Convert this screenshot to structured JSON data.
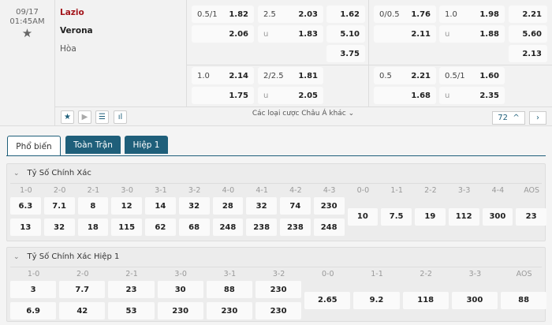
{
  "match": {
    "date": "09/17",
    "time": "01:45AM",
    "home": "Lazio",
    "away": "Verona",
    "draw": "Hòa"
  },
  "odds": {
    "block1_row1": {
      "hdp": "0.5/1",
      "hdp_home": "1.82",
      "hdp_away": "2.06",
      "ou_line": "2.5",
      "ou_over": "2.03",
      "ou_u": "u",
      "ou_under": "1.83",
      "x12": [
        "1.62",
        "5.10",
        "3.75"
      ]
    },
    "block1_row2": {
      "hdp": "1.0",
      "hdp_home": "2.14",
      "hdp_away": "1.75",
      "ou_line": "2/2.5",
      "ou_over": "1.81",
      "ou_u": "u",
      "ou_under": "2.05"
    },
    "block2_row1": {
      "hdp": "0/0.5",
      "hdp_home": "1.76",
      "hdp_away": "2.11",
      "ou_line": "1.0",
      "ou_over": "1.98",
      "ou_u": "u",
      "ou_under": "1.88",
      "x12": [
        "2.21",
        "5.60",
        "2.13"
      ]
    },
    "block2_row2": {
      "hdp": "0.5",
      "hdp_home": "2.21",
      "hdp_away": "1.68",
      "ou_line": "0.5/1",
      "ou_over": "1.60",
      "ou_u": "u",
      "ou_under": "2.35"
    }
  },
  "footer": {
    "more_label": "Các loại cược Châu Á khác",
    "count": "72"
  },
  "tabs": [
    "Phổ biến",
    "Toàn Trận",
    "Hiệp 1"
  ],
  "sections": [
    {
      "title": "Tỷ Số Chính Xác",
      "pairs": [
        [
          "1-0",
          "6.3",
          "13"
        ],
        [
          "2-0",
          "7.1",
          "32"
        ],
        [
          "2-1",
          "8",
          "18"
        ],
        [
          "3-0",
          "12",
          "115"
        ],
        [
          "3-1",
          "14",
          "62"
        ],
        [
          "3-2",
          "32",
          "68"
        ],
        [
          "4-0",
          "28",
          "248"
        ],
        [
          "4-1",
          "32",
          "238"
        ],
        [
          "4-2",
          "74",
          "238"
        ],
        [
          "4-3",
          "230",
          "248"
        ]
      ],
      "singles": [
        [
          "0-0",
          "10"
        ],
        [
          "1-1",
          "7.5"
        ],
        [
          "2-2",
          "19"
        ],
        [
          "3-3",
          "112"
        ],
        [
          "4-4",
          "300"
        ],
        [
          "AOS",
          "23"
        ]
      ]
    },
    {
      "title": "Tỷ Số Chính Xác Hiệp 1",
      "pairs": [
        [
          "1-0",
          "3",
          "6.9"
        ],
        [
          "2-0",
          "7.7",
          "42"
        ],
        [
          "2-1",
          "23",
          "53"
        ],
        [
          "3-0",
          "30",
          "230"
        ],
        [
          "3-1",
          "88",
          "230"
        ],
        [
          "3-2",
          "230",
          "230"
        ]
      ],
      "singles": [
        [
          "0-0",
          "2.65"
        ],
        [
          "1-1",
          "9.2"
        ],
        [
          "2-2",
          "118"
        ],
        [
          "3-3",
          "300"
        ],
        [
          "AOS",
          "88"
        ]
      ]
    }
  ]
}
